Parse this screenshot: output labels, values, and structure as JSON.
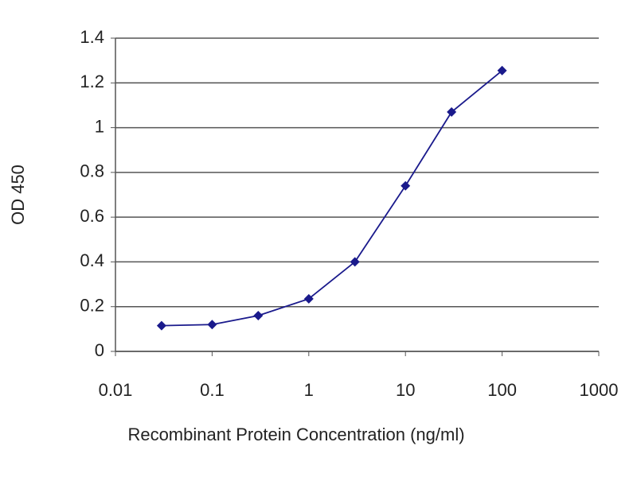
{
  "chart_data": {
    "type": "line",
    "x_label": "Recombinant Protein Concentration (ng/ml)",
    "y_label": "OD 450",
    "x_scale": "log",
    "x": [
      0.03,
      0.1,
      0.3,
      1,
      3,
      10,
      30,
      100
    ],
    "series": [
      {
        "color": "#1a1a8c",
        "values": [
          0.115,
          0.12,
          0.16,
          0.235,
          0.4,
          0.74,
          1.07,
          1.255
        ]
      }
    ],
    "xlim": [
      0.01,
      1000
    ],
    "xticks": [
      0.01,
      0.1,
      1,
      10,
      100,
      1000
    ],
    "ylim": [
      0,
      1.4
    ],
    "yticks": [
      0,
      0.2,
      0.4,
      0.6,
      0.8,
      1,
      1.2,
      1.4
    ],
    "grid": true
  }
}
